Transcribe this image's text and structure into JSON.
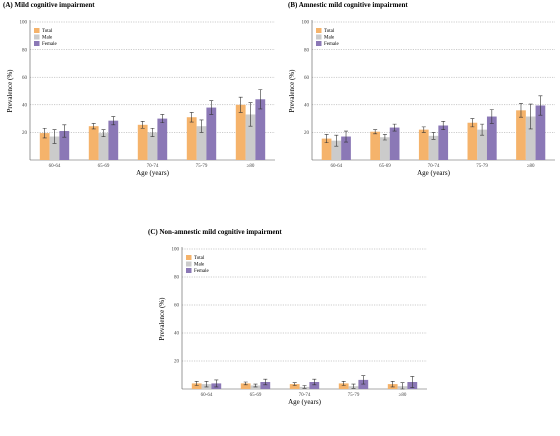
{
  "colors": {
    "Total": "#F5B36B",
    "Male": "#CBCBCB",
    "Female": "#8B78B6"
  },
  "chart_data": [
    {
      "type": "bar",
      "title": "(A) Mild cognitive impairment",
      "xlabel": "Age (years)",
      "ylabel": "Prevalence (%)",
      "ylim": [
        0,
        100
      ],
      "yticks": [
        20,
        40,
        60,
        80,
        100
      ],
      "grid": true,
      "legend_position": "top-left",
      "categories": [
        "60-64",
        "65-69",
        "70-74",
        "75-79",
        "≥80"
      ],
      "series": [
        {
          "name": "Total",
          "values": [
            19.5,
            24.5,
            25.5,
            31,
            40
          ],
          "errors": [
            3.5,
            2,
            2.5,
            3.5,
            5.5
          ]
        },
        {
          "name": "Male",
          "values": [
            17,
            19.5,
            20,
            24.5,
            33
          ],
          "errors": [
            5,
            2.5,
            3,
            4.5,
            8.5
          ]
        },
        {
          "name": "Female",
          "values": [
            21,
            28.5,
            30,
            38,
            44
          ],
          "errors": [
            4.5,
            3,
            3,
            5,
            7
          ]
        }
      ]
    },
    {
      "type": "bar",
      "title": "(B) Amnestic mild cognitive impairment",
      "xlabel": "Age (years)",
      "ylabel": "Prevalence (%)",
      "ylim": [
        0,
        100
      ],
      "yticks": [
        20,
        40,
        60,
        80,
        100
      ],
      "grid": true,
      "legend_position": "top-left",
      "categories": [
        "60-64",
        "65-69",
        "70-74",
        "75-79",
        "≥80"
      ],
      "series": [
        {
          "name": "Total",
          "values": [
            15.5,
            20.5,
            22,
            27,
            36
          ],
          "errors": [
            3,
            1.5,
            2,
            3,
            5
          ]
        },
        {
          "name": "Male",
          "values": [
            14,
            16.5,
            17.5,
            22,
            31.5
          ],
          "errors": [
            4,
            2,
            2.5,
            4,
            9
          ]
        },
        {
          "name": "Female",
          "values": [
            17,
            23.5,
            25,
            31.5,
            39.5
          ],
          "errors": [
            4,
            2.5,
            3,
            5,
            7
          ]
        }
      ]
    },
    {
      "type": "bar",
      "title": "(C) Non-amnestic mild cognitive impairment",
      "xlabel": "Age (years)",
      "ylabel": "Prevalence (%)",
      "ylim": [
        0,
        100
      ],
      "yticks": [
        20,
        40,
        60,
        80,
        100
      ],
      "grid": true,
      "legend_position": "top-left",
      "categories": [
        "60-64",
        "65-69",
        "70-74",
        "75-79",
        "≥80"
      ],
      "series": [
        {
          "name": "Total",
          "values": [
            4,
            4,
            3.5,
            4,
            3.5
          ],
          "errors": [
            1.5,
            1,
            1,
            1.5,
            2
          ]
        },
        {
          "name": "Male",
          "values": [
            3.5,
            2.5,
            1.5,
            2,
            2
          ],
          "errors": [
            2,
            1,
            1,
            1.5,
            2.5
          ]
        },
        {
          "name": "Female",
          "values": [
            4,
            5,
            5,
            6.5,
            5
          ],
          "errors": [
            2.5,
            2,
            2,
            3,
            4
          ]
        }
      ]
    }
  ]
}
